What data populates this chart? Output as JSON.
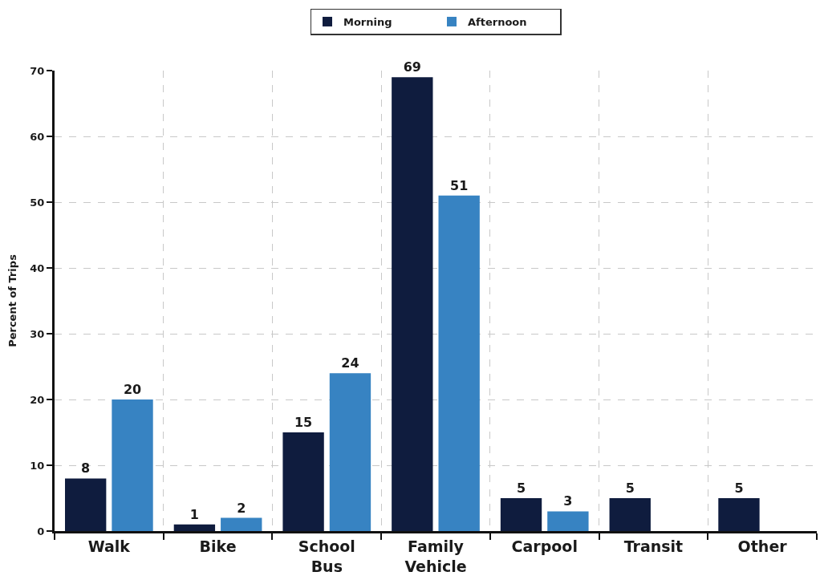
{
  "chart_data": {
    "type": "bar",
    "categories": [
      "Walk",
      "Bike",
      "School Bus",
      "Family Vehicle",
      "Carpool",
      "Transit",
      "Other"
    ],
    "series": [
      {
        "name": "Morning",
        "color": "#0f1c3e",
        "values": [
          8,
          1,
          15,
          69,
          5,
          5,
          5
        ]
      },
      {
        "name": "Afternoon",
        "color": "#3783c2",
        "values": [
          20,
          2,
          24,
          51,
          3,
          null,
          null
        ]
      }
    ],
    "ylabel": "Percent of Trips",
    "ylim": [
      0,
      70
    ],
    "yticks": [
      0,
      10,
      20,
      30,
      40,
      50,
      60,
      70
    ],
    "grid": true,
    "legend": "top",
    "data_labels": true
  }
}
